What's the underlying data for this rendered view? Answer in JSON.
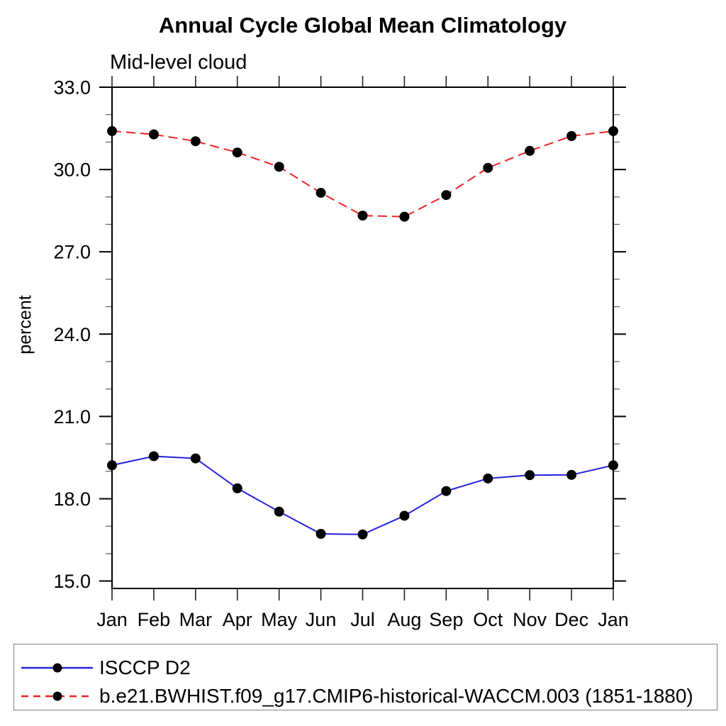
{
  "chart_data": {
    "type": "line",
    "title": "Annual Cycle Global Mean Climatology",
    "subtitle": "Mid-level cloud",
    "ylabel": "percent",
    "x_categories": [
      "Jan",
      "Feb",
      "Mar",
      "Apr",
      "May",
      "Jun",
      "Jul",
      "Aug",
      "Sep",
      "Oct",
      "Nov",
      "Dec",
      "Jan"
    ],
    "series": [
      {
        "name": "ISCCP D2",
        "color": "#2222dd",
        "line_style": "solid",
        "marker": "filled-circle",
        "marker_color": "#000000",
        "values": [
          19.22,
          19.55,
          19.47,
          18.38,
          17.53,
          16.72,
          16.7,
          17.38,
          18.28,
          18.74,
          18.86,
          18.87,
          19.22
        ]
      },
      {
        "name": "b.e21.BWHIST.f09_g17.CMIP6-historical-WACCM.003 (1851-1880)",
        "color": "#ee2222",
        "line_style": "dashed",
        "marker": "filled-circle",
        "marker_color": "#000000",
        "values": [
          31.4,
          31.28,
          31.03,
          30.62,
          30.1,
          29.15,
          28.32,
          28.28,
          29.07,
          30.06,
          30.68,
          31.22,
          31.4
        ]
      }
    ],
    "ylim": [
      14.73,
      33.0
    ],
    "ytick_major": [
      15,
      18,
      21,
      24,
      27,
      30,
      33
    ],
    "ytick_labels": [
      "15.0",
      "18.0",
      "21.0",
      "24.0",
      "27.0",
      "30.0",
      "33.0"
    ],
    "ytick_minor_step": 1,
    "grid": false,
    "legend_position": "bottom",
    "axis_color": "#000000",
    "background_color": "#ffffff"
  }
}
